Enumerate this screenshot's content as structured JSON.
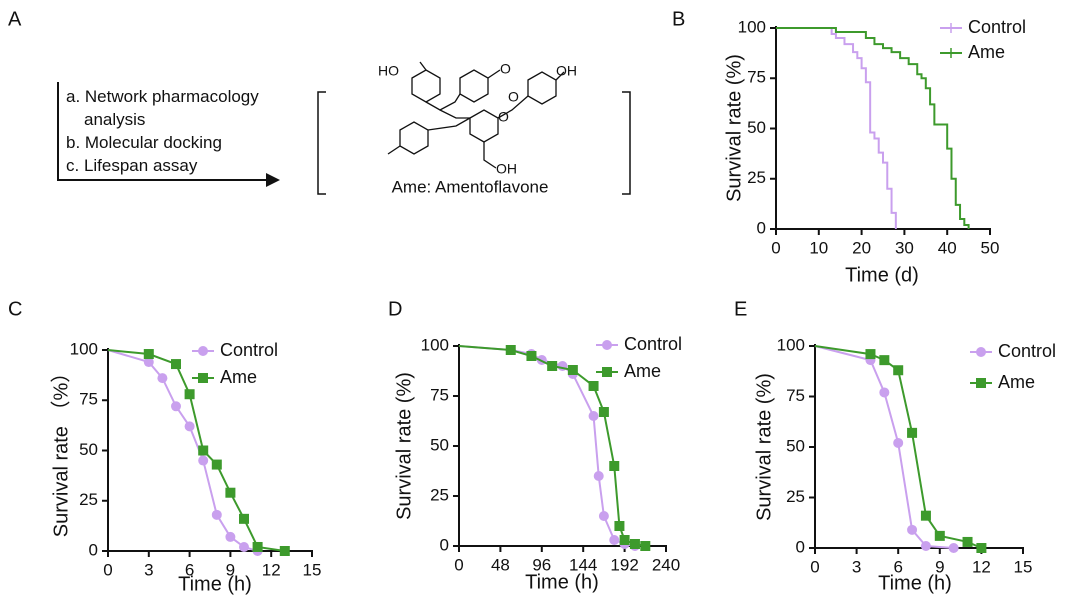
{
  "panel_a": {
    "panel_label": "A",
    "steps": [
      "a. Network pharmacology analysis",
      "b. Molecular docking",
      "c. Lifespan assay"
    ],
    "atom_labels": [
      "HO",
      "O",
      "OH",
      "O",
      "O",
      "OH"
    ],
    "caption": "Ame: Amentoflavone"
  },
  "chart_data": [
    {
      "type": "line",
      "panel_label": "B",
      "step": true,
      "x_label": "Time (d)",
      "y_label": "Survival rate (%)",
      "xlim": [
        0,
        50
      ],
      "xticks": [
        0,
        10,
        20,
        30,
        40,
        50
      ],
      "ylim": [
        0,
        100
      ],
      "yticks": [
        0,
        25,
        50,
        75,
        100
      ],
      "series": [
        {
          "name": "Control",
          "color": "#c9a0ee",
          "x": [
            0,
            13,
            14,
            16,
            18,
            19,
            20,
            21,
            22,
            23,
            24,
            25,
            26,
            27,
            28
          ],
          "values": [
            100,
            97,
            95,
            92,
            88,
            85,
            80,
            73,
            48,
            45,
            38,
            33,
            20,
            8,
            0
          ]
        },
        {
          "name": "Ame",
          "color": "#3d9a2c",
          "x": [
            0,
            14,
            21,
            23,
            25,
            27,
            29,
            31,
            33,
            34,
            35,
            36,
            37,
            40,
            41,
            42,
            43,
            44,
            45
          ],
          "values": [
            100,
            98,
            95,
            92,
            90,
            88,
            85,
            82,
            77,
            75,
            70,
            62,
            52,
            40,
            25,
            12,
            5,
            2,
            0
          ]
        }
      ]
    },
    {
      "type": "line",
      "panel_label": "C",
      "x_label": "Time (h)",
      "y_label": "Survival rate （%）",
      "xlim": [
        0,
        15
      ],
      "xticks": [
        0,
        3,
        6,
        9,
        12,
        15
      ],
      "ylim": [
        0,
        100
      ],
      "yticks": [
        0,
        25,
        50,
        75,
        100
      ],
      "series": [
        {
          "name": "Control",
          "color": "#c9a0ee",
          "marker": "circle",
          "x": [
            0,
            3,
            4,
            5,
            6,
            7,
            8,
            9,
            10,
            11
          ],
          "values": [
            100,
            94,
            86,
            72,
            62,
            45,
            18,
            7,
            2,
            0
          ]
        },
        {
          "name": "Ame",
          "color": "#3d9a2c",
          "marker": "square",
          "x": [
            0,
            3,
            5,
            6,
            7,
            8,
            9,
            10,
            11,
            13
          ],
          "values": [
            100,
            98,
            93,
            78,
            50,
            43,
            29,
            16,
            2,
            0
          ]
        }
      ]
    },
    {
      "type": "line",
      "panel_label": "D",
      "x_label": "Time (h)",
      "y_label": "Survival rate (%)",
      "xlim": [
        0,
        240
      ],
      "xticks": [
        0,
        48,
        96,
        144,
        192,
        240
      ],
      "ylim": [
        0,
        100
      ],
      "yticks": [
        0,
        25,
        50,
        75,
        100
      ],
      "series": [
        {
          "name": "Control",
          "color": "#c9a0ee",
          "marker": "circle",
          "x": [
            0,
            60,
            84,
            96,
            120,
            132,
            156,
            162,
            168,
            180,
            192,
            204
          ],
          "values": [
            100,
            98,
            96,
            93,
            90,
            86,
            65,
            35,
            15,
            3,
            1,
            0
          ]
        },
        {
          "name": "Ame",
          "color": "#3d9a2c",
          "marker": "square",
          "x": [
            0,
            60,
            84,
            108,
            132,
            156,
            168,
            180,
            186,
            192,
            204,
            216
          ],
          "values": [
            100,
            98,
            95,
            90,
            88,
            80,
            67,
            40,
            10,
            3,
            1,
            0
          ]
        }
      ]
    },
    {
      "type": "line",
      "panel_label": "E",
      "x_label": "Time (h)",
      "y_label": "Survival rate (%)",
      "xlim": [
        0,
        15
      ],
      "xticks": [
        0,
        3,
        6,
        9,
        12,
        15
      ],
      "ylim": [
        0,
        100
      ],
      "yticks": [
        0,
        25,
        50,
        75,
        100
      ],
      "series": [
        {
          "name": "Control",
          "color": "#c9a0ee",
          "marker": "circle",
          "x": [
            0,
            4,
            5,
            6,
            7,
            8,
            10
          ],
          "values": [
            100,
            93,
            77,
            52,
            9,
            1,
            0
          ]
        },
        {
          "name": "Ame",
          "color": "#3d9a2c",
          "marker": "square",
          "x": [
            0,
            4,
            5,
            6,
            7,
            8,
            9,
            11,
            12
          ],
          "values": [
            100,
            96,
            93,
            88,
            57,
            16,
            6,
            3,
            0
          ]
        }
      ]
    }
  ]
}
